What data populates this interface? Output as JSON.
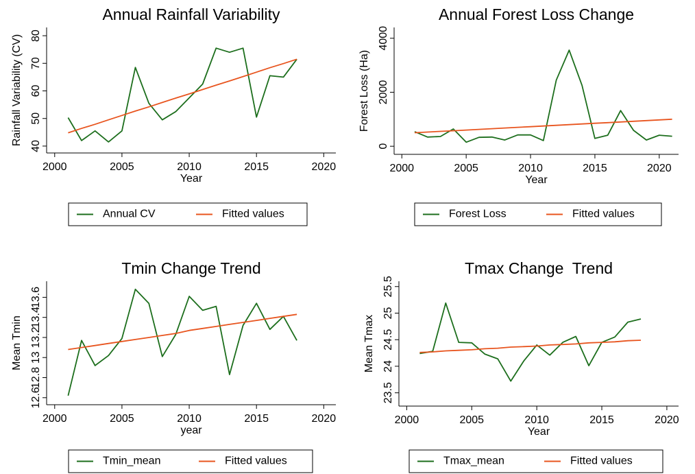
{
  "chart_data": [
    {
      "type": "line",
      "title": "Annual Rainfall Variability",
      "xlabel": "Year",
      "ylabel": "Rainfall Variability (CV)",
      "x": [
        2001,
        2002,
        2003,
        2004,
        2005,
        2006,
        2007,
        2008,
        2009,
        2010,
        2011,
        2012,
        2013,
        2014,
        2015,
        2016,
        2017,
        2018
      ],
      "series": [
        {
          "name": "Annual CV",
          "color": "#1c6e1c",
          "values": [
            50.3,
            42,
            45.5,
            41.5,
            45.5,
            68.5,
            55.5,
            49.5,
            52.5,
            57.5,
            62.5,
            75.5,
            74,
            75.5,
            50.5,
            65.5,
            65,
            71.5
          ]
        },
        {
          "name": "Fitted values",
          "color": "#e8541e",
          "values": [
            44.8,
            46.4,
            47.9,
            49.5,
            51.1,
            52.7,
            54.2,
            55.8,
            57.4,
            58.9,
            60.5,
            62.1,
            63.6,
            65.2,
            66.8,
            68.4,
            69.9,
            71.5
          ]
        }
      ],
      "xlim": [
        1999.4,
        2020.9
      ],
      "xticks": [
        2000,
        2005,
        2010,
        2015,
        2020
      ],
      "ylim": [
        37.5,
        83
      ],
      "yticks": [
        40,
        50,
        60,
        70,
        80
      ]
    },
    {
      "type": "line",
      "title": "Annual Forest Loss Change",
      "xlabel": "Year",
      "ylabel": "Forest Loss (Ha)",
      "x": [
        2001,
        2002,
        2003,
        2004,
        2005,
        2006,
        2007,
        2008,
        2009,
        2010,
        2011,
        2012,
        2013,
        2014,
        2015,
        2016,
        2017,
        2018,
        2019,
        2020,
        2021
      ],
      "series": [
        {
          "name": "Forest Loss",
          "color": "#1c6e1c",
          "values": [
            540,
            340,
            360,
            640,
            150,
            330,
            340,
            230,
            420,
            420,
            210,
            2450,
            3560,
            2250,
            290,
            410,
            1320,
            590,
            230,
            410,
            370
          ]
        },
        {
          "name": "Fitted values",
          "color": "#e8541e",
          "values": [
            500,
            525,
            550,
            575,
            600,
            625,
            650,
            675,
            700,
            725,
            750,
            775,
            800,
            825,
            850,
            875,
            900,
            925,
            950,
            975,
            1000
          ]
        }
      ],
      "xlim": [
        1999.4,
        2021.5
      ],
      "xticks": [
        2000,
        2005,
        2010,
        2015,
        2020
      ],
      "ylim": [
        -300,
        4400
      ],
      "yticks": [
        0,
        2000,
        4000
      ]
    },
    {
      "type": "line",
      "title": "Tmin Change Trend",
      "xlabel": "year",
      "ylabel": "Mean Tmin",
      "x": [
        2001,
        2002,
        2003,
        2004,
        2005,
        2006,
        2007,
        2008,
        2009,
        2010,
        2011,
        2012,
        2013,
        2014,
        2015,
        2016,
        2017,
        2018
      ],
      "series": [
        {
          "name": "Tmin_mean",
          "color": "#1c6e1c",
          "values": [
            12.62,
            13.17,
            12.92,
            13.02,
            13.19,
            13.68,
            13.54,
            13.01,
            13.23,
            13.61,
            13.47,
            13.51,
            12.83,
            13.32,
            13.54,
            13.28,
            13.41,
            13.17
          ]
        },
        {
          "name": "Fitted values",
          "color": "#e8541e",
          "values": [
            13.08,
            13.1,
            13.12,
            13.14,
            13.16,
            13.18,
            13.2,
            13.22,
            13.24,
            13.27,
            13.29,
            13.31,
            13.33,
            13.35,
            13.37,
            13.39,
            13.41,
            13.43
          ]
        }
      ],
      "xlim": [
        1999.4,
        2020.9
      ],
      "xticks": [
        2000,
        2005,
        2010,
        2015,
        2020
      ],
      "ylim": [
        12.53,
        13.76
      ],
      "yticks": [
        12.6,
        12.8,
        13,
        13.2,
        13.4,
        13.6
      ]
    },
    {
      "type": "line",
      "title": "Tmax Change  Trend",
      "xlabel": "Year",
      "ylabel": "Mean Tmax",
      "x": [
        2001,
        2002,
        2003,
        2004,
        2005,
        2006,
        2007,
        2008,
        2009,
        2010,
        2011,
        2012,
        2013,
        2014,
        2015,
        2016,
        2017,
        2018
      ],
      "series": [
        {
          "name": "Tmax_mean",
          "color": "#1c6e1c",
          "values": [
            24.24,
            24.28,
            25.19,
            24.45,
            24.44,
            24.23,
            24.14,
            23.72,
            24.1,
            24.4,
            24.21,
            24.45,
            24.56,
            24.01,
            24.45,
            24.55,
            24.83,
            24.89
          ]
        },
        {
          "name": "Fitted values",
          "color": "#e8541e",
          "values": [
            24.26,
            24.27,
            24.29,
            24.3,
            24.31,
            24.33,
            24.34,
            24.36,
            24.37,
            24.38,
            24.4,
            24.41,
            24.42,
            24.44,
            24.45,
            24.46,
            24.48,
            24.49
          ]
        }
      ],
      "xlim": [
        1999.4,
        2020.9
      ],
      "xticks": [
        2000,
        2005,
        2010,
        2015,
        2020
      ],
      "ylim": [
        23.25,
        25.6
      ],
      "yticks": [
        23.5,
        24,
        24.5,
        25,
        25.5
      ]
    }
  ]
}
